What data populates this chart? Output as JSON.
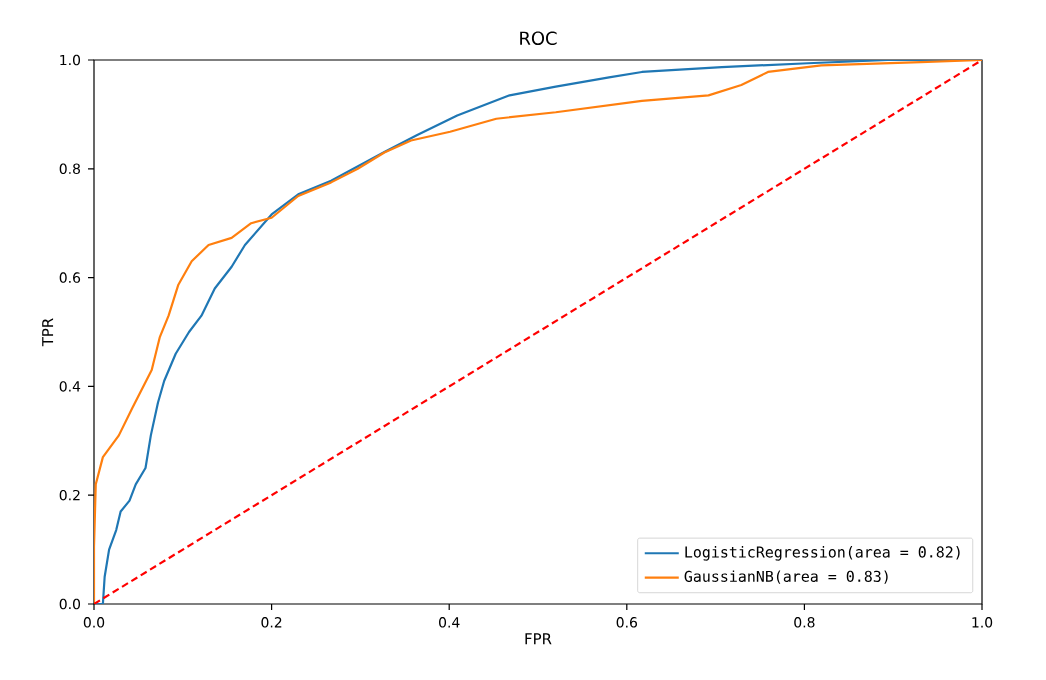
{
  "chart_data": {
    "type": "line",
    "title": "ROC",
    "xlabel": "FPR",
    "ylabel": "TPR",
    "xlim": [
      0,
      1
    ],
    "ylim": [
      0,
      1
    ],
    "xticks": [
      {
        "value": 0,
        "label": "0.0"
      },
      {
        "value": 0.2,
        "label": "0.2"
      },
      {
        "value": 0.4,
        "label": "0.4"
      },
      {
        "value": 0.6,
        "label": "0.6"
      },
      {
        "value": 0.8,
        "label": "0.8"
      },
      {
        "value": 1,
        "label": "1.0"
      }
    ],
    "yticks": [
      {
        "value": 0,
        "label": "0.0"
      },
      {
        "value": 0.2,
        "label": "0.2"
      },
      {
        "value": 0.4,
        "label": "0.4"
      },
      {
        "value": 0.6,
        "label": "0.6"
      },
      {
        "value": 0.8,
        "label": "0.8"
      },
      {
        "value": 1,
        "label": "1.0"
      }
    ],
    "grid": false,
    "legend": "bottom right",
    "marker": "none",
    "line_style": "solid",
    "series": [
      {
        "name": "LogisticRegression(area = 0.82)",
        "color": "#1f77b4",
        "x": [
          0,
          0.01,
          0.012,
          0.017,
          0.025,
          0.03,
          0.04,
          0.047,
          0.058,
          0.064,
          0.072,
          0.079,
          0.092,
          0.107,
          0.121,
          0.136,
          0.155,
          0.17,
          0.2,
          0.23,
          0.267,
          0.297,
          0.327,
          0.364,
          0.409,
          0.468,
          0.52,
          0.58,
          0.617,
          0.707,
          0.804,
          0.894,
          1
        ],
        "values": [
          0,
          0,
          0.05,
          0.1,
          0.136,
          0.17,
          0.19,
          0.22,
          0.25,
          0.31,
          0.37,
          0.41,
          0.46,
          0.5,
          0.53,
          0.58,
          0.62,
          0.66,
          0.716,
          0.753,
          0.778,
          null,
          0.831,
          0.862,
          0.898,
          0.935,
          0.951,
          0.968,
          0.978,
          0.987,
          0.994,
          1,
          1
        ]
      },
      {
        "name": "GaussianNB(area = 0.83)",
        "color": "#ff7f0e",
        "x": [
          0,
          0,
          0.002,
          0.01,
          0.028,
          0.043,
          0.054,
          0.065,
          0.074,
          0.084,
          0.095,
          0.11,
          0.129,
          0.155,
          0.177,
          0.2,
          0.23,
          0.267,
          0.297,
          0.327,
          0.357,
          0.401,
          0.453,
          0.52,
          0.617,
          0.692,
          0.729,
          0.759,
          0.819,
          0.931,
          1
        ],
        "values": [
          0,
          0.105,
          0.22,
          0.27,
          0.31,
          0.36,
          0.395,
          0.43,
          0.49,
          0.53,
          0.587,
          0.63,
          0.66,
          0.673,
          0.7,
          0.71,
          0.75,
          0.775,
          0.8,
          0.83,
          0.852,
          0.868,
          0.892,
          0.904,
          0.925,
          0.935,
          0.954,
          0.978,
          0.99,
          0.996,
          1
        ]
      },
      {
        "color": "#ff0000",
        "line_style": "dashed",
        "x": [
          0,
          1
        ],
        "values": [
          0,
          1
        ]
      }
    ]
  }
}
